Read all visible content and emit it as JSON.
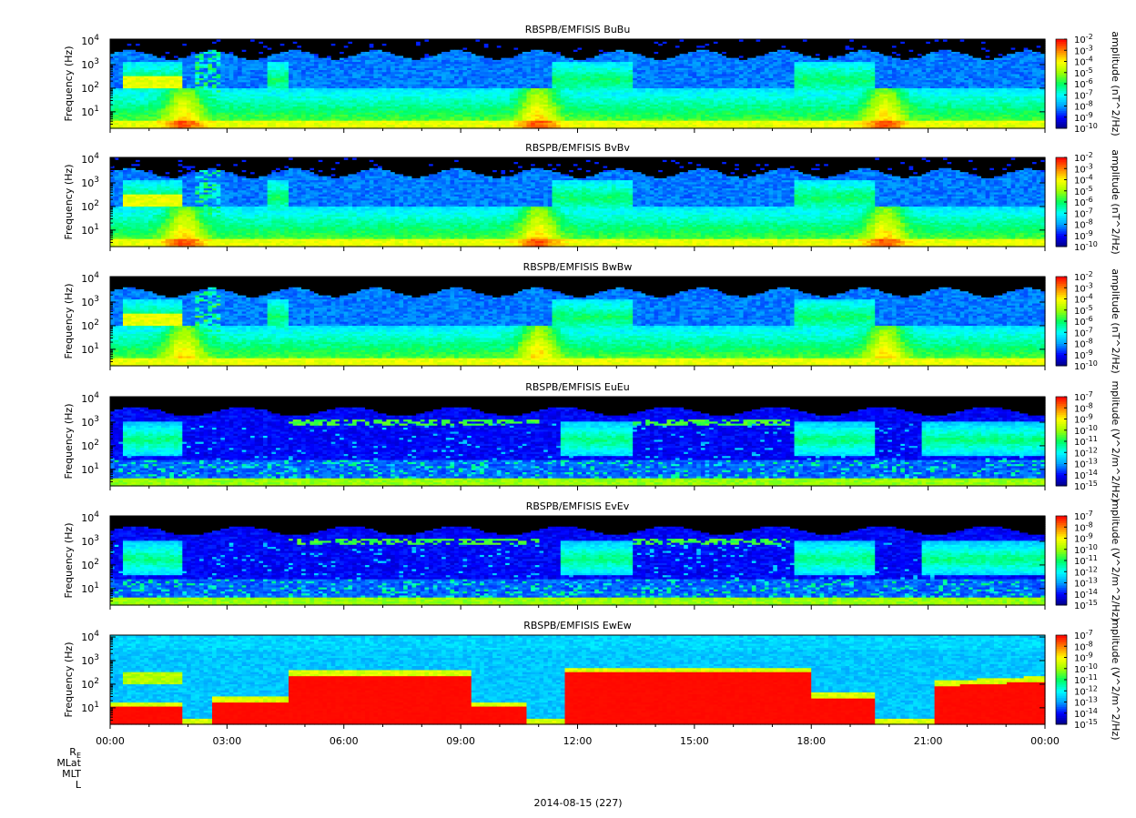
{
  "chart_data": [
    {
      "type": "heatmap",
      "title": "RBSPB/EMFISIS  BuBu",
      "ylabel": "Frequency (Hz)",
      "yscale": "log",
      "ylim": [
        2,
        12000
      ],
      "y_ticks": [
        {
          "base": "10",
          "exp": "1",
          "value": 10
        },
        {
          "base": "10",
          "exp": "2",
          "value": 100
        },
        {
          "base": "10",
          "exp": "3",
          "value": 1000
        },
        {
          "base": "10",
          "exp": "4",
          "value": 10000
        }
      ],
      "colorbar": {
        "label": "amplitude (nT^2/Hz)",
        "scale": "log",
        "range": [
          1e-10,
          0.01
        ],
        "ticks": [
          {
            "base": "10",
            "exp": "-2"
          },
          {
            "base": "10",
            "exp": "-3"
          },
          {
            "base": "10",
            "exp": "-4"
          },
          {
            "base": "10",
            "exp": "-5"
          },
          {
            "base": "10",
            "exp": "-6"
          },
          {
            "base": "10",
            "exp": "-7"
          },
          {
            "base": "10",
            "exp": "-8"
          },
          {
            "base": "10",
            "exp": "-9"
          },
          {
            "base": "10",
            "exp": "-10"
          }
        ]
      },
      "colormap": [
        "#000080",
        "#0000ff",
        "#00a0ff",
        "#00ffff",
        "#00ff60",
        "#a0ff00",
        "#ffff00",
        "#ff8000",
        "#ff0000"
      ],
      "style": "mag"
    },
    {
      "type": "heatmap",
      "title": "RBSPB/EMFISIS  BvBv",
      "ylabel": "Frequency (Hz)",
      "yscale": "log",
      "ylim": [
        2,
        12000
      ],
      "y_ticks": [
        {
          "base": "10",
          "exp": "1",
          "value": 10
        },
        {
          "base": "10",
          "exp": "2",
          "value": 100
        },
        {
          "base": "10",
          "exp": "3",
          "value": 1000
        },
        {
          "base": "10",
          "exp": "4",
          "value": 10000
        }
      ],
      "colorbar": {
        "label": "amplitude (nT^2/Hz)",
        "scale": "log",
        "range": [
          1e-10,
          0.01
        ],
        "ticks": [
          {
            "base": "10",
            "exp": "-2"
          },
          {
            "base": "10",
            "exp": "-3"
          },
          {
            "base": "10",
            "exp": "-4"
          },
          {
            "base": "10",
            "exp": "-5"
          },
          {
            "base": "10",
            "exp": "-6"
          },
          {
            "base": "10",
            "exp": "-7"
          },
          {
            "base": "10",
            "exp": "-8"
          },
          {
            "base": "10",
            "exp": "-9"
          },
          {
            "base": "10",
            "exp": "-10"
          }
        ]
      },
      "colormap": [
        "#000080",
        "#0000ff",
        "#00a0ff",
        "#00ffff",
        "#00ff60",
        "#a0ff00",
        "#ffff00",
        "#ff8000",
        "#ff0000"
      ],
      "style": "mag"
    },
    {
      "type": "heatmap",
      "title": "RBSPB/EMFISIS  BwBw",
      "ylabel": "Frequency (Hz)",
      "yscale": "log",
      "ylim": [
        2,
        12000
      ],
      "y_ticks": [
        {
          "base": "10",
          "exp": "1",
          "value": 10
        },
        {
          "base": "10",
          "exp": "2",
          "value": 100
        },
        {
          "base": "10",
          "exp": "3",
          "value": 1000
        },
        {
          "base": "10",
          "exp": "4",
          "value": 10000
        }
      ],
      "colorbar": {
        "label": "amplitude (nT^2/Hz)",
        "scale": "log",
        "range": [
          1e-10,
          0.01
        ],
        "ticks": [
          {
            "base": "10",
            "exp": "-2"
          },
          {
            "base": "10",
            "exp": "-3"
          },
          {
            "base": "10",
            "exp": "-4"
          },
          {
            "base": "10",
            "exp": "-5"
          },
          {
            "base": "10",
            "exp": "-6"
          },
          {
            "base": "10",
            "exp": "-7"
          },
          {
            "base": "10",
            "exp": "-8"
          },
          {
            "base": "10",
            "exp": "-9"
          },
          {
            "base": "10",
            "exp": "-10"
          }
        ]
      },
      "colormap": [
        "#000080",
        "#0000ff",
        "#00a0ff",
        "#00ffff",
        "#00ff60",
        "#a0ff00",
        "#ffff00",
        "#ff8000",
        "#ff0000"
      ],
      "style": "magw"
    },
    {
      "type": "heatmap",
      "title": "RBSPB/EMFISIS  EuEu",
      "ylabel": "Frequency (Hz)",
      "yscale": "log",
      "ylim": [
        2,
        12000
      ],
      "y_ticks": [
        {
          "base": "10",
          "exp": "1",
          "value": 10
        },
        {
          "base": "10",
          "exp": "2",
          "value": 100
        },
        {
          "base": "10",
          "exp": "3",
          "value": 1000
        },
        {
          "base": "10",
          "exp": "4",
          "value": 10000
        }
      ],
      "colorbar": {
        "label": "mplitude (V^2/m^2/Hz)",
        "scale": "log",
        "range": [
          1e-15,
          1e-07
        ],
        "ticks": [
          {
            "base": "10",
            "exp": "-7"
          },
          {
            "base": "10",
            "exp": "-8"
          },
          {
            "base": "10",
            "exp": "-9"
          },
          {
            "base": "10",
            "exp": "-10"
          },
          {
            "base": "10",
            "exp": "-11"
          },
          {
            "base": "10",
            "exp": "-12"
          },
          {
            "base": "10",
            "exp": "-13"
          },
          {
            "base": "10",
            "exp": "-14"
          },
          {
            "base": "10",
            "exp": "-15"
          }
        ]
      },
      "colormap": [
        "#000080",
        "#0000ff",
        "#00a0ff",
        "#00ffff",
        "#00ff60",
        "#a0ff00",
        "#ffff00",
        "#ff8000",
        "#ff0000"
      ],
      "style": "elec"
    },
    {
      "type": "heatmap",
      "title": "RBSPB/EMFISIS  EvEv",
      "ylabel": "Frequency (Hz)",
      "yscale": "log",
      "ylim": [
        2,
        12000
      ],
      "y_ticks": [
        {
          "base": "10",
          "exp": "1",
          "value": 10
        },
        {
          "base": "10",
          "exp": "2",
          "value": 100
        },
        {
          "base": "10",
          "exp": "3",
          "value": 1000
        },
        {
          "base": "10",
          "exp": "4",
          "value": 10000
        }
      ],
      "colorbar": {
        "label": "mplitude (V^2/m^2/Hz)",
        "scale": "log",
        "range": [
          1e-15,
          1e-07
        ],
        "ticks": [
          {
            "base": "10",
            "exp": "-7"
          },
          {
            "base": "10",
            "exp": "-8"
          },
          {
            "base": "10",
            "exp": "-9"
          },
          {
            "base": "10",
            "exp": "-10"
          },
          {
            "base": "10",
            "exp": "-11"
          },
          {
            "base": "10",
            "exp": "-12"
          },
          {
            "base": "10",
            "exp": "-13"
          },
          {
            "base": "10",
            "exp": "-14"
          },
          {
            "base": "10",
            "exp": "-15"
          }
        ]
      },
      "colormap": [
        "#000080",
        "#0000ff",
        "#00a0ff",
        "#00ffff",
        "#00ff60",
        "#a0ff00",
        "#ffff00",
        "#ff8000",
        "#ff0000"
      ],
      "style": "elec"
    },
    {
      "type": "heatmap",
      "title": "RBSPB/EMFISIS  EwEw",
      "ylabel": "Frequency (Hz)",
      "yscale": "log",
      "ylim": [
        2,
        12000
      ],
      "y_ticks": [
        {
          "base": "10",
          "exp": "1",
          "value": 10
        },
        {
          "base": "10",
          "exp": "2",
          "value": 100
        },
        {
          "base": "10",
          "exp": "3",
          "value": 1000
        },
        {
          "base": "10",
          "exp": "4",
          "value": 10000
        }
      ],
      "colorbar": {
        "label": "mplitude (V^2/m^2/Hz)",
        "scale": "log",
        "range": [
          1e-15,
          1e-07
        ],
        "ticks": [
          {
            "base": "10",
            "exp": "-7"
          },
          {
            "base": "10",
            "exp": "-8"
          },
          {
            "base": "10",
            "exp": "-9"
          },
          {
            "base": "10",
            "exp": "-10"
          },
          {
            "base": "10",
            "exp": "-11"
          },
          {
            "base": "10",
            "exp": "-12"
          },
          {
            "base": "10",
            "exp": "-13"
          },
          {
            "base": "10",
            "exp": "-14"
          },
          {
            "base": "10",
            "exp": "-15"
          }
        ]
      },
      "colormap": [
        "#000080",
        "#0000ff",
        "#00a0ff",
        "#00ffff",
        "#00ff60",
        "#a0ff00",
        "#ffff00",
        "#ff8000",
        "#ff0000"
      ],
      "style": "ew"
    }
  ],
  "x_axis": {
    "ticks": [
      "00:00",
      "03:00",
      "06:00",
      "09:00",
      "12:00",
      "15:00",
      "18:00",
      "21:00",
      "00:00"
    ],
    "range_hours": [
      0,
      24
    ]
  },
  "ephemeris_labels": [
    {
      "base": "R",
      "sub": "E"
    },
    {
      "base": "MLat",
      "sub": ""
    },
    {
      "base": "MLT",
      "sub": ""
    },
    {
      "base": "L",
      "sub": ""
    }
  ],
  "date_label": "2014-08-15 (227)"
}
